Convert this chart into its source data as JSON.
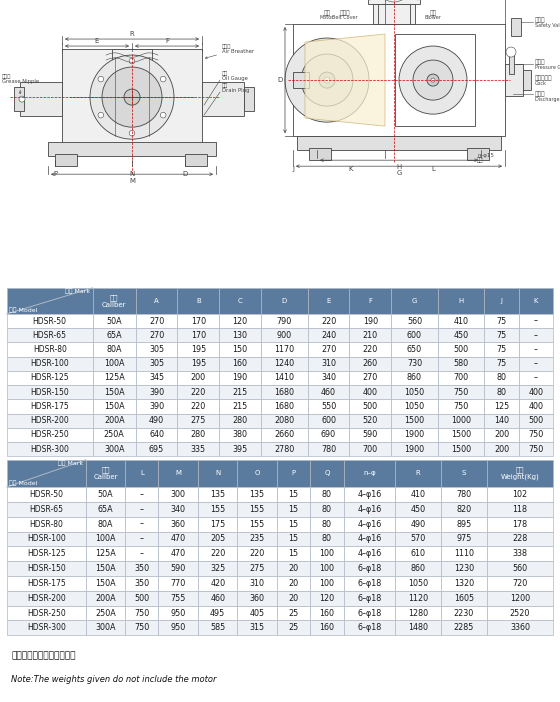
{
  "table1_header_top": "记号 Mark",
  "table1_header_bot": "型式 Model",
  "table1_cols": [
    "口径\nCaliber",
    "A",
    "B",
    "C",
    "D",
    "E",
    "F",
    "G",
    "H",
    "J",
    "K"
  ],
  "table1_data": [
    [
      "HDSR-50",
      "50A",
      "270",
      "170",
      "120",
      "790",
      "220",
      "190",
      "560",
      "410",
      "75",
      "–"
    ],
    [
      "HDSR-65",
      "65A",
      "270",
      "170",
      "130",
      "900",
      "240",
      "210",
      "600",
      "450",
      "75",
      "–"
    ],
    [
      "HDSR-80",
      "80A",
      "305",
      "195",
      "150",
      "1170",
      "270",
      "220",
      "650",
      "500",
      "75",
      "–"
    ],
    [
      "HDSR-100",
      "100A",
      "305",
      "195",
      "160",
      "1240",
      "310",
      "260",
      "730",
      "580",
      "75",
      "–"
    ],
    [
      "HDSR-125",
      "125A",
      "345",
      "200",
      "190",
      "1410",
      "340",
      "270",
      "860",
      "700",
      "80",
      "–"
    ],
    [
      "HDSR-150",
      "150A",
      "390",
      "220",
      "215",
      "1680",
      "460",
      "400",
      "1050",
      "750",
      "80",
      "400"
    ],
    [
      "HDSR-175",
      "150A",
      "390",
      "220",
      "215",
      "1680",
      "550",
      "500",
      "1050",
      "750",
      "125",
      "400"
    ],
    [
      "HDSR-200",
      "200A",
      "490",
      "275",
      "280",
      "2080",
      "600",
      "520",
      "1500",
      "1000",
      "140",
      "500"
    ],
    [
      "HDSR-250",
      "250A",
      "640",
      "280",
      "380",
      "2660",
      "690",
      "590",
      "1900",
      "1500",
      "200",
      "750"
    ],
    [
      "HDSR-300",
      "300A",
      "695",
      "335",
      "395",
      "2780",
      "780",
      "700",
      "1900",
      "1500",
      "200",
      "750"
    ]
  ],
  "table2_header_top": "记号 Mark",
  "table2_header_bot": "型式 Model",
  "table2_cols": [
    "口径\nCaliber",
    "L",
    "M",
    "N",
    "O",
    "P",
    "Q",
    "n–φ",
    "R",
    "S",
    "重量\nWeight(Kg)"
  ],
  "table2_data": [
    [
      "HDSR-50",
      "50A",
      "–",
      "300",
      "135",
      "135",
      "15",
      "80",
      "4–φ16",
      "410",
      "780",
      "102"
    ],
    [
      "HDSR-65",
      "65A",
      "–",
      "340",
      "155",
      "155",
      "15",
      "80",
      "4–φ16",
      "450",
      "820",
      "118"
    ],
    [
      "HDSR-80",
      "80A",
      "–",
      "360",
      "175",
      "155",
      "15",
      "80",
      "4–φ16",
      "490",
      "895",
      "178"
    ],
    [
      "HDSR-100",
      "100A",
      "–",
      "470",
      "205",
      "235",
      "15",
      "80",
      "4–φ16",
      "570",
      "975",
      "228"
    ],
    [
      "HDSR-125",
      "125A",
      "–",
      "470",
      "220",
      "220",
      "15",
      "100",
      "4–φ16",
      "610",
      "1110",
      "338"
    ],
    [
      "HDSR-150",
      "150A",
      "350",
      "590",
      "325",
      "275",
      "20",
      "100",
      "6–φ18",
      "860",
      "1230",
      "560"
    ],
    [
      "HDSR-175",
      "150A",
      "350",
      "770",
      "420",
      "310",
      "20",
      "100",
      "6–φ18",
      "1050",
      "1320",
      "720"
    ],
    [
      "HDSR-200",
      "200A",
      "500",
      "755",
      "460",
      "360",
      "20",
      "120",
      "6–φ18",
      "1120",
      "1605",
      "1200"
    ],
    [
      "HDSR-250",
      "250A",
      "750",
      "950",
      "495",
      "405",
      "25",
      "160",
      "6–φ18",
      "1280",
      "2230",
      "2520"
    ],
    [
      "HDSR-300",
      "300A",
      "750",
      "950",
      "585",
      "315",
      "25",
      "160",
      "6–φ18",
      "1480",
      "2285",
      "3360"
    ]
  ],
  "note_cn": "注：重量中不包括电机重量",
  "note_en": "Note:The weights given do not include the motor",
  "header_bg": "#5b7b9e",
  "odd_bg": "#ffffff",
  "even_bg": "#eef2f6",
  "border": "#b0b8c4",
  "text_color": "#1a1a1a"
}
